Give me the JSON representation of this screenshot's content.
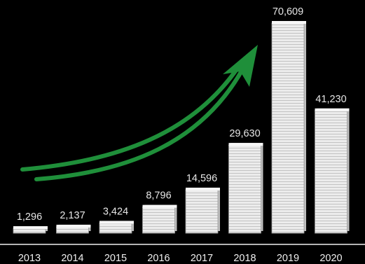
{
  "chart_data": {
    "type": "bar",
    "title": "",
    "xlabel": "",
    "ylabel": "",
    "categories": [
      "2013",
      "2014",
      "2015",
      "2016",
      "2017",
      "2018",
      "2019",
      "2020"
    ],
    "values": [
      1296,
      2137,
      3424,
      8796,
      14596,
      29630,
      70609,
      41230
    ],
    "value_labels": [
      "1,296",
      "2,137",
      "3,424",
      "8,796",
      "14,596",
      "29,630",
      "70,609",
      "41,230"
    ],
    "ylim": [
      0,
      70609
    ],
    "grid": false,
    "legend": "none",
    "annotation": "green-upward-trend-arrow",
    "colors": {
      "background": "#000000",
      "bar": "#e8e8e8",
      "bar_edge": "#9a9a9a",
      "arrow": "#1f8f3a",
      "text": "#e6e6e6"
    }
  }
}
